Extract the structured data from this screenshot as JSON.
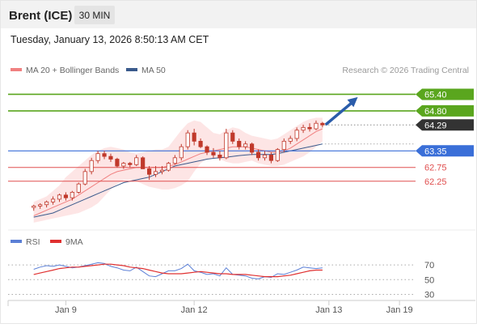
{
  "header": {
    "instrument": "Brent (ICE)",
    "timeframe": "30 MIN",
    "datetime": "Tuesday, January 13, 2026 8:50:13 AM CET"
  },
  "legend": {
    "bb_label": "MA 20 + Bollinger Bands",
    "ma50_label": "MA 50",
    "credit": "Research © 2026 Trading Central"
  },
  "colors": {
    "candle": "#c0392b",
    "bands_fill": "#fde1e1",
    "ma20": "#f08080",
    "ma50": "#3a5a8c",
    "green_level": "#5aa61e",
    "blue_level": "#3a6fd8",
    "red_level": "#e05050",
    "current_price": "#333333",
    "arrow": "#2a5caa",
    "rsi": "#5b7fd6",
    "rsi_ma": "#e03030"
  },
  "chart_data": [
    {
      "type": "candlestick",
      "title": "Brent (ICE)",
      "timeframe": "30 MIN",
      "price_range": [
        60.6,
        66.0
      ],
      "x_labels": [
        "Jan 9",
        "Jan 12",
        "Jan 13",
        "Jan 19"
      ],
      "x_label_positions": [
        5,
        25,
        46,
        57
      ],
      "x_range": [
        -4,
        59
      ],
      "current_price": {
        "value": "64.29",
        "num": 64.29
      },
      "levels": [
        {
          "label": "65.40",
          "value": 65.4,
          "kind": "resistance",
          "style": "badge-green"
        },
        {
          "label": "64.80",
          "value": 64.8,
          "kind": "resistance",
          "style": "badge-green"
        },
        {
          "label": "63.35",
          "value": 63.35,
          "kind": "pivot",
          "style": "badge-blue"
        },
        {
          "label": "62.75",
          "value": 62.75,
          "kind": "support",
          "style": "text-red"
        },
        {
          "label": "62.25",
          "value": 62.25,
          "kind": "support",
          "style": "text-red"
        }
      ],
      "forecast_arrow": {
        "from": [
          45.5,
          64.3
        ],
        "to": [
          50.5,
          65.3
        ]
      },
      "candles": [
        [
          61.3,
          61.4,
          61.18,
          61.35
        ],
        [
          61.35,
          61.45,
          61.25,
          61.4
        ],
        [
          61.4,
          61.55,
          61.3,
          61.5
        ],
        [
          61.5,
          61.7,
          61.4,
          61.6
        ],
        [
          61.6,
          61.8,
          61.5,
          61.75
        ],
        [
          61.75,
          61.85,
          61.55,
          61.65
        ],
        [
          61.65,
          61.9,
          61.55,
          61.85
        ],
        [
          61.85,
          62.2,
          61.8,
          62.15
        ],
        [
          62.15,
          62.7,
          62.1,
          62.6
        ],
        [
          62.6,
          63.1,
          62.5,
          63.0
        ],
        [
          63.0,
          63.35,
          62.9,
          63.25
        ],
        [
          63.25,
          63.35,
          63.05,
          63.15
        ],
        [
          63.15,
          63.25,
          62.95,
          63.05
        ],
        [
          63.05,
          63.1,
          62.75,
          62.8
        ],
        [
          62.8,
          62.95,
          62.7,
          62.9
        ],
        [
          62.9,
          62.95,
          62.75,
          62.85
        ],
        [
          62.85,
          63.2,
          62.8,
          63.1
        ],
        [
          63.1,
          63.15,
          62.7,
          62.7
        ],
        [
          62.7,
          62.8,
          62.3,
          62.5
        ],
        [
          62.5,
          62.8,
          62.4,
          62.6
        ],
        [
          62.6,
          62.8,
          62.5,
          62.65
        ],
        [
          62.65,
          62.95,
          62.6,
          62.9
        ],
        [
          62.9,
          63.2,
          62.85,
          63.1
        ],
        [
          63.1,
          63.6,
          63.0,
          63.5
        ],
        [
          63.5,
          64.1,
          63.4,
          64.0
        ],
        [
          64.0,
          64.15,
          63.55,
          63.7
        ],
        [
          63.7,
          63.8,
          63.45,
          63.5
        ],
        [
          63.5,
          63.55,
          63.2,
          63.3
        ],
        [
          63.3,
          63.45,
          63.1,
          63.2
        ],
        [
          63.2,
          63.35,
          63.0,
          63.1
        ],
        [
          63.1,
          64.15,
          63.05,
          64.0
        ],
        [
          64.0,
          64.1,
          63.6,
          63.7
        ],
        [
          63.7,
          63.8,
          63.4,
          63.5
        ],
        [
          63.5,
          63.7,
          63.4,
          63.6
        ],
        [
          63.6,
          63.65,
          63.2,
          63.3
        ],
        [
          63.3,
          63.4,
          63.0,
          63.1
        ],
        [
          63.1,
          63.35,
          63.0,
          63.2
        ],
        [
          63.2,
          63.3,
          62.9,
          63.0
        ],
        [
          63.0,
          63.45,
          62.95,
          63.4
        ],
        [
          63.4,
          63.8,
          63.3,
          63.7
        ],
        [
          63.7,
          63.9,
          63.6,
          63.8
        ],
        [
          63.8,
          64.2,
          63.7,
          64.1
        ],
        [
          64.1,
          64.3,
          64.0,
          64.2
        ],
        [
          64.2,
          64.35,
          64.05,
          64.15
        ],
        [
          64.15,
          64.45,
          64.1,
          64.35
        ],
        [
          64.35,
          64.4,
          64.2,
          64.29
        ]
      ],
      "ma20": [
        61.0,
        61.1,
        61.2,
        61.3,
        61.4,
        61.5,
        61.6,
        61.75,
        61.9,
        62.05,
        62.2,
        62.35,
        62.5,
        62.6,
        62.65,
        62.7,
        62.75,
        62.75,
        62.75,
        62.75,
        62.75,
        62.8,
        62.85,
        62.95,
        63.05,
        63.15,
        63.25,
        63.3,
        63.35,
        63.4,
        63.45,
        63.5,
        63.5,
        63.5,
        63.45,
        63.4,
        63.35,
        63.3,
        63.3,
        63.35,
        63.45,
        63.6,
        63.75,
        63.9,
        64.05,
        64.15
      ],
      "bb_upper": [
        61.5,
        61.6,
        61.7,
        61.9,
        62.1,
        62.4,
        62.6,
        62.8,
        63.0,
        63.2,
        63.35,
        63.45,
        63.5,
        63.45,
        63.4,
        63.3,
        63.25,
        63.3,
        63.35,
        63.4,
        63.4,
        63.5,
        63.8,
        64.1,
        64.35,
        64.45,
        64.4,
        64.2,
        64.0,
        63.95,
        64.1,
        64.2,
        64.15,
        64.0,
        63.9,
        63.85,
        63.8,
        63.75,
        63.8,
        63.95,
        64.1,
        64.25,
        64.4,
        64.5,
        64.55,
        64.55
      ],
      "bb_lower": [
        60.75,
        60.8,
        60.85,
        60.9,
        60.95,
        61.0,
        61.05,
        61.1,
        61.2,
        61.3,
        61.45,
        61.7,
        61.95,
        62.15,
        62.3,
        62.3,
        62.25,
        62.15,
        62.05,
        62.0,
        61.95,
        61.95,
        62.0,
        62.1,
        62.25,
        62.6,
        62.9,
        63.05,
        63.1,
        63.05,
        62.95,
        62.9,
        62.9,
        62.95,
        63.0,
        62.9,
        62.85,
        62.8,
        62.8,
        62.85,
        62.95,
        63.05,
        63.15,
        63.3,
        63.5,
        63.7
      ],
      "ma50": [
        60.95,
        61.0,
        61.05,
        61.1,
        61.2,
        61.3,
        61.4,
        61.5,
        61.6,
        61.7,
        61.8,
        61.9,
        62.0,
        62.1,
        62.2,
        62.25,
        62.3,
        62.35,
        62.4,
        62.5,
        62.6,
        62.7,
        62.8,
        62.85,
        62.9,
        62.95,
        63.0,
        63.05,
        63.08,
        63.1,
        63.12,
        63.15,
        63.18,
        63.2,
        63.22,
        63.22,
        63.22,
        63.22,
        63.25,
        63.3,
        63.35,
        63.4,
        63.45,
        63.5,
        63.55,
        63.6
      ]
    },
    {
      "type": "line",
      "title": "",
      "series": [
        {
          "name": "RSI",
          "values": [
            64,
            67,
            69,
            68,
            70,
            68,
            66,
            67,
            69,
            71,
            73,
            72,
            68,
            66,
            63,
            62,
            67,
            61,
            55,
            54,
            58,
            62,
            62,
            65,
            71,
            62,
            60,
            57,
            58,
            55,
            66,
            57,
            56,
            55,
            52,
            51,
            54,
            53,
            58,
            57,
            60,
            63,
            67,
            66,
            65,
            66
          ]
        },
        {
          "name": "9MA",
          "values": [
            57,
            59,
            61,
            63,
            65,
            66,
            67,
            67,
            68,
            69,
            70,
            71,
            71,
            70,
            69,
            67,
            66,
            65,
            63,
            61,
            59,
            58,
            58,
            58,
            59,
            60,
            61,
            60,
            59,
            58,
            58,
            57,
            57,
            57,
            56,
            55,
            54,
            54,
            54,
            55,
            56,
            58,
            60,
            62,
            63,
            63
          ]
        }
      ],
      "ylim": [
        25,
        80
      ],
      "yticks": [
        "70",
        "50",
        "30"
      ],
      "ytick_values": [
        70,
        50,
        30
      ]
    }
  ]
}
